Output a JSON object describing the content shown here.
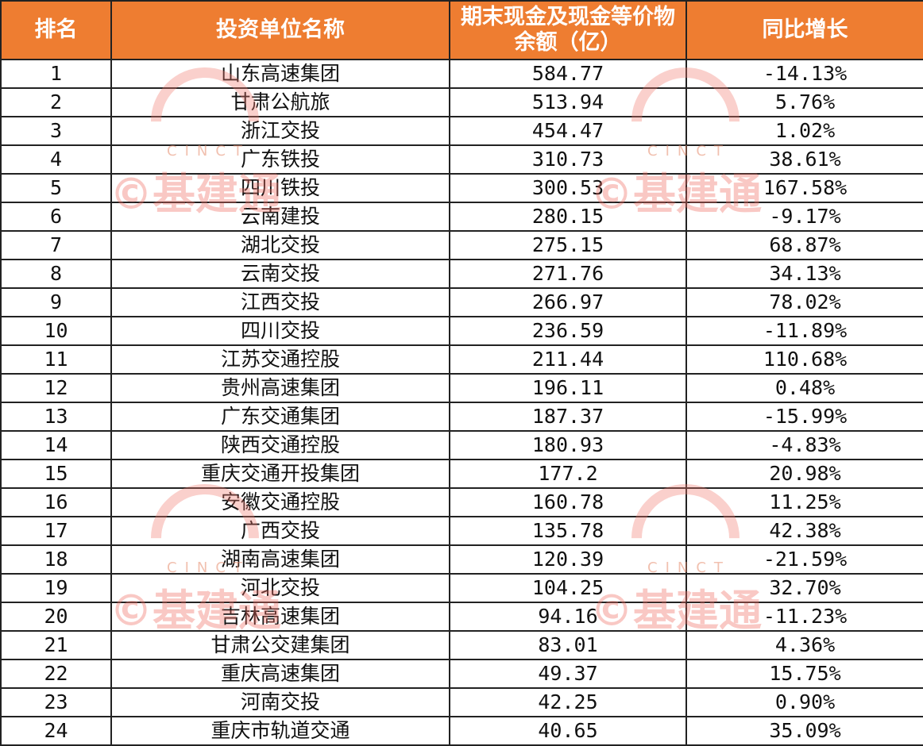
{
  "headers": [
    "排名",
    "投资单位名称",
    "期末现金及现金等价物余额（亿）",
    "同比增长"
  ],
  "rows": [
    {
      "rank": "1",
      "name": "山东高速集团",
      "cash": "584.77",
      "growth": "-14.13%"
    },
    {
      "rank": "2",
      "name": "甘肃公航旅",
      "cash": "513.94",
      "growth": "5.76%"
    },
    {
      "rank": "3",
      "name": "浙江交投",
      "cash": "454.47",
      "growth": "1.02%"
    },
    {
      "rank": "4",
      "name": "广东铁投",
      "cash": "310.73",
      "growth": "38.61%"
    },
    {
      "rank": "5",
      "name": "四川铁投",
      "cash": "300.53",
      "growth": "167.58%"
    },
    {
      "rank": "6",
      "name": "云南建投",
      "cash": "280.15",
      "growth": "-9.17%"
    },
    {
      "rank": "7",
      "name": "湖北交投",
      "cash": "275.15",
      "growth": "68.87%"
    },
    {
      "rank": "8",
      "name": "云南交投",
      "cash": "271.76",
      "growth": "34.13%"
    },
    {
      "rank": "9",
      "name": "江西交投",
      "cash": "266.97",
      "growth": "78.02%"
    },
    {
      "rank": "10",
      "name": "四川交投",
      "cash": "236.59",
      "growth": "-11.89%"
    },
    {
      "rank": "11",
      "name": "江苏交通控股",
      "cash": "211.44",
      "growth": "110.68%"
    },
    {
      "rank": "12",
      "name": "贵州高速集团",
      "cash": "196.11",
      "growth": "0.48%"
    },
    {
      "rank": "13",
      "name": "广东交通集团",
      "cash": "187.37",
      "growth": "-15.99%"
    },
    {
      "rank": "14",
      "name": "陕西交通控股",
      "cash": "180.93",
      "growth": "-4.83%"
    },
    {
      "rank": "15",
      "name": "重庆交通开投集团",
      "cash": "177.2",
      "growth": "20.98%"
    },
    {
      "rank": "16",
      "name": "安徽交通控股",
      "cash": "160.78",
      "growth": "11.25%"
    },
    {
      "rank": "17",
      "name": "广西交投",
      "cash": "135.78",
      "growth": "42.38%"
    },
    {
      "rank": "18",
      "name": "湖南高速集团",
      "cash": "120.39",
      "growth": "-21.59%"
    },
    {
      "rank": "19",
      "name": "河北交投",
      "cash": "104.25",
      "growth": "32.70%"
    },
    {
      "rank": "20",
      "name": "吉林高速集团",
      "cash": "94.16",
      "growth": "-11.23%"
    },
    {
      "rank": "21",
      "name": "甘肃公交建集团",
      "cash": "83.01",
      "growth": "4.36%"
    },
    {
      "rank": "22",
      "name": "重庆高速集团",
      "cash": "49.37",
      "growth": "15.75%"
    },
    {
      "rank": "23",
      "name": "河南交投",
      "cash": "42.25",
      "growth": "0.90%"
    },
    {
      "rank": "24",
      "name": "重庆市轨道交通",
      "cash": "40.65",
      "growth": "35.09%"
    }
  ],
  "watermark": {
    "brand": "©基建通",
    "tag": "CINCT"
  },
  "colors": {
    "header_bg": "#ee7d31",
    "header_text": "#ffffff"
  }
}
